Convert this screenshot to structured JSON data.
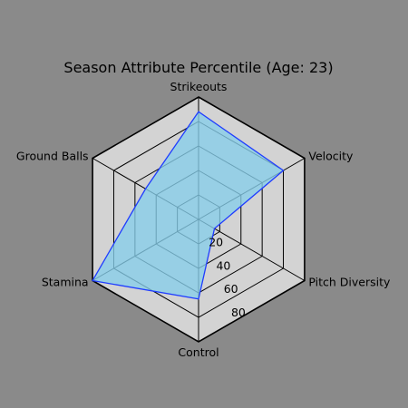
{
  "chart_data": {
    "type": "radar",
    "title": "Season Attribute Percentile (Age: 23)",
    "axes": [
      "Strikeouts",
      "Velocity",
      "Pitch Diversity",
      "Control",
      "Stamina",
      "Ground Balls"
    ],
    "rlim": [
      0,
      100
    ],
    "ticks": [
      20,
      40,
      60,
      80
    ],
    "series": [
      {
        "values": [
          88,
          80,
          15,
          65,
          100,
          50
        ]
      }
    ],
    "colors": {
      "background": "#8a8a8a",
      "plot_fill": "#d3d3d3",
      "grid": "#000000",
      "series_line": "#1f3cff",
      "series_fill": "#87ceeb"
    },
    "grid": true
  }
}
